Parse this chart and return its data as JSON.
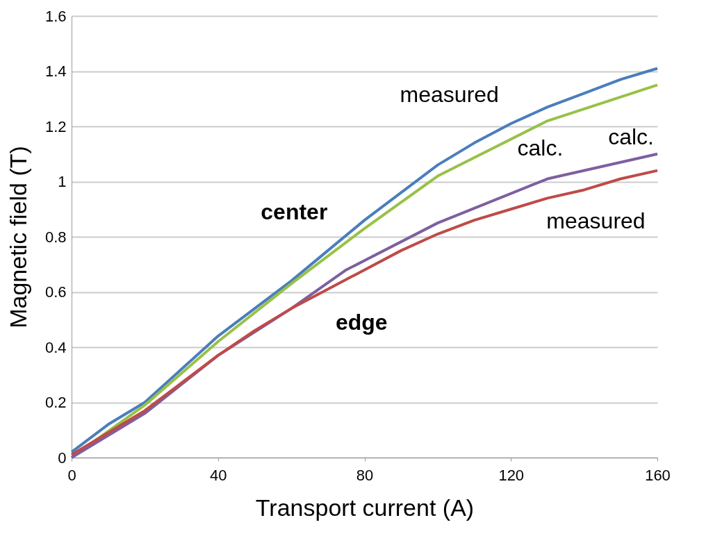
{
  "chart_data": {
    "type": "line",
    "xlabel": "Transport current (A)",
    "ylabel": "Magnetic field (T)",
    "xlim": [
      0,
      160
    ],
    "xticks": [
      0,
      40,
      80,
      120,
      160
    ],
    "ylim": [
      0,
      1.6
    ],
    "yticks": [
      0,
      0.2,
      0.4,
      0.6,
      0.8,
      1,
      1.2,
      1.4,
      1.6
    ],
    "grid": "y",
    "legend": false,
    "marker": "none",
    "line_style": "solid",
    "series": [
      {
        "color": "#4a7ebb",
        "x": [
          0,
          10,
          20,
          30,
          40,
          50,
          60,
          70,
          80,
          90,
          100,
          110,
          120,
          130,
          140,
          150,
          160
        ],
        "values": [
          0.02,
          0.12,
          0.2,
          0.32,
          0.44,
          0.54,
          0.64,
          0.75,
          0.86,
          0.96,
          1.06,
          1.14,
          1.21,
          1.27,
          1.32,
          1.37,
          1.41
        ]
      },
      {
        "color": "#98c147",
        "x": [
          0,
          20,
          40,
          60,
          80,
          100,
          130,
          160
        ],
        "values": [
          0.0,
          0.19,
          0.42,
          0.63,
          0.83,
          1.02,
          1.22,
          1.35
        ]
      },
      {
        "color": "#7d5fa0",
        "x": [
          0,
          20,
          40,
          60,
          75,
          100,
          130,
          160
        ],
        "values": [
          0.0,
          0.16,
          0.37,
          0.54,
          0.68,
          0.85,
          1.01,
          1.1
        ]
      },
      {
        "color": "#be4b48",
        "x": [
          0,
          10,
          20,
          30,
          40,
          50,
          60,
          70,
          80,
          90,
          100,
          110,
          120,
          130,
          140,
          150,
          160
        ],
        "values": [
          0.01,
          0.09,
          0.17,
          0.27,
          0.37,
          0.46,
          0.54,
          0.61,
          0.68,
          0.75,
          0.81,
          0.86,
          0.9,
          0.94,
          0.97,
          1.01,
          1.04
        ]
      }
    ],
    "annotations": [
      "center",
      "edge",
      "measured",
      "calc.",
      "calc.",
      "measured"
    ]
  }
}
